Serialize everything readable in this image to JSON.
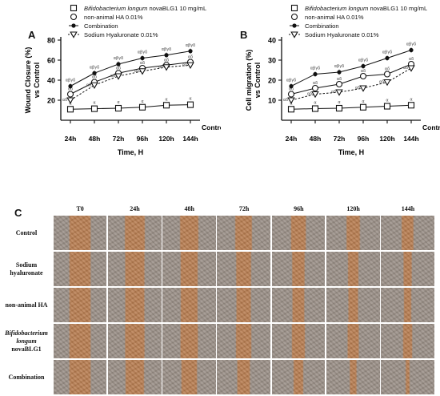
{
  "figure": {
    "panel_labels": [
      "A",
      "B",
      "C"
    ]
  },
  "chart_data": [
    {
      "type": "line",
      "panel": "A",
      "xlabel": "Time, H",
      "ylabel": "Wound Closure (%) vs Control",
      "categories": [
        "24h",
        "48h",
        "72h",
        "96h",
        "120h",
        "144h"
      ],
      "baseline_label": "Control",
      "ylim": [
        0,
        80
      ],
      "yticks": [
        20,
        40,
        60,
        80
      ],
      "series": [
        {
          "name": "Bifidobacterium longum novaBLG1 10 mg/mL",
          "marker": "open-square",
          "values": [
            11,
            11.5,
            12,
            13,
            15,
            15.5
          ],
          "annotations": [
            "α",
            "α",
            "α",
            "α",
            "α",
            "α"
          ]
        },
        {
          "name": "non-animal HA 0.01%",
          "marker": "open-circle",
          "values": [
            26,
            38,
            47,
            52,
            55,
            58
          ],
          "annotations": [
            "αδ",
            "αδ",
            "αδ",
            "αδ",
            "αδ",
            "αδ"
          ]
        },
        {
          "name": "Combination",
          "marker": "filled-circle",
          "values": [
            34,
            47,
            56,
            62,
            65,
            69
          ],
          "annotations": [
            "αβγδ",
            "αβγδ",
            "αβγδ",
            "αβγδ",
            "αβγδ",
            "αβγδ"
          ]
        },
        {
          "name": "Sodium Hyaluronate 0.01%",
          "marker": "open-triangle",
          "values": [
            20,
            35,
            44,
            49,
            53,
            55
          ],
          "annotations": [
            "αδ",
            "αδ",
            "αδ",
            "αδ",
            "αδ",
            "αδ"
          ]
        }
      ]
    },
    {
      "type": "line",
      "panel": "B",
      "xlabel": "Time, H",
      "ylabel": "Cell migration (%) vs Control",
      "categories": [
        "24h",
        "48h",
        "72h",
        "96h",
        "120h",
        "144h"
      ],
      "baseline_label": "Control",
      "ylim": [
        0,
        40
      ],
      "yticks": [
        10,
        20,
        30,
        40
      ],
      "series": [
        {
          "name": "Bifidobacterium longum novaBLG1 10 mg/mL",
          "marker": "open-square",
          "values": [
            5.5,
            5.8,
            6,
            6.5,
            7,
            7.5
          ],
          "annotations": [
            "α",
            "α",
            "α",
            "α",
            "α",
            "α"
          ]
        },
        {
          "name": "non-animal HA 0.01%",
          "marker": "open-circle",
          "values": [
            13,
            16,
            18,
            22,
            23,
            28
          ],
          "annotations": [
            "αδ",
            "αδ",
            "αδ",
            "αδ",
            "αδ",
            "αδ"
          ]
        },
        {
          "name": "Combination",
          "marker": "filled-circle",
          "values": [
            17,
            23,
            24,
            27,
            31,
            35
          ],
          "annotations": [
            "αβγδ",
            "αβγδ",
            "αβγδ",
            "αβγδ",
            "αβγδ",
            "αβγδ"
          ]
        },
        {
          "name": "Sodium Hyaluronate 0.01%",
          "marker": "open-triangle",
          "values": [
            10,
            13,
            14,
            16,
            19,
            26
          ],
          "annotations": [
            "αδ",
            "αδ",
            "αδ",
            "αδ",
            "αδ",
            "αδ"
          ]
        }
      ]
    }
  ],
  "micrographs": {
    "columns": [
      "T0",
      "24h",
      "48h",
      "72h",
      "96h",
      "120h",
      "144h"
    ],
    "rows": [
      {
        "label_lines": [
          "Control"
        ],
        "italic_lines": 0
      },
      {
        "label_lines": [
          "Sodium",
          "hyaluronate"
        ],
        "italic_lines": 0
      },
      {
        "label_lines": [
          "non-animal HA"
        ],
        "italic_lines": 0
      },
      {
        "label_lines": [
          "Bifidobacterium",
          "longum",
          "novaBLG1"
        ],
        "italic_lines": 2
      },
      {
        "label_lines": [
          "Combination"
        ],
        "italic_lines": 0
      }
    ],
    "colors": {
      "gap": "#b87d50",
      "cells": "#9a8f86",
      "cells_light": "#cfc6bc"
    }
  }
}
